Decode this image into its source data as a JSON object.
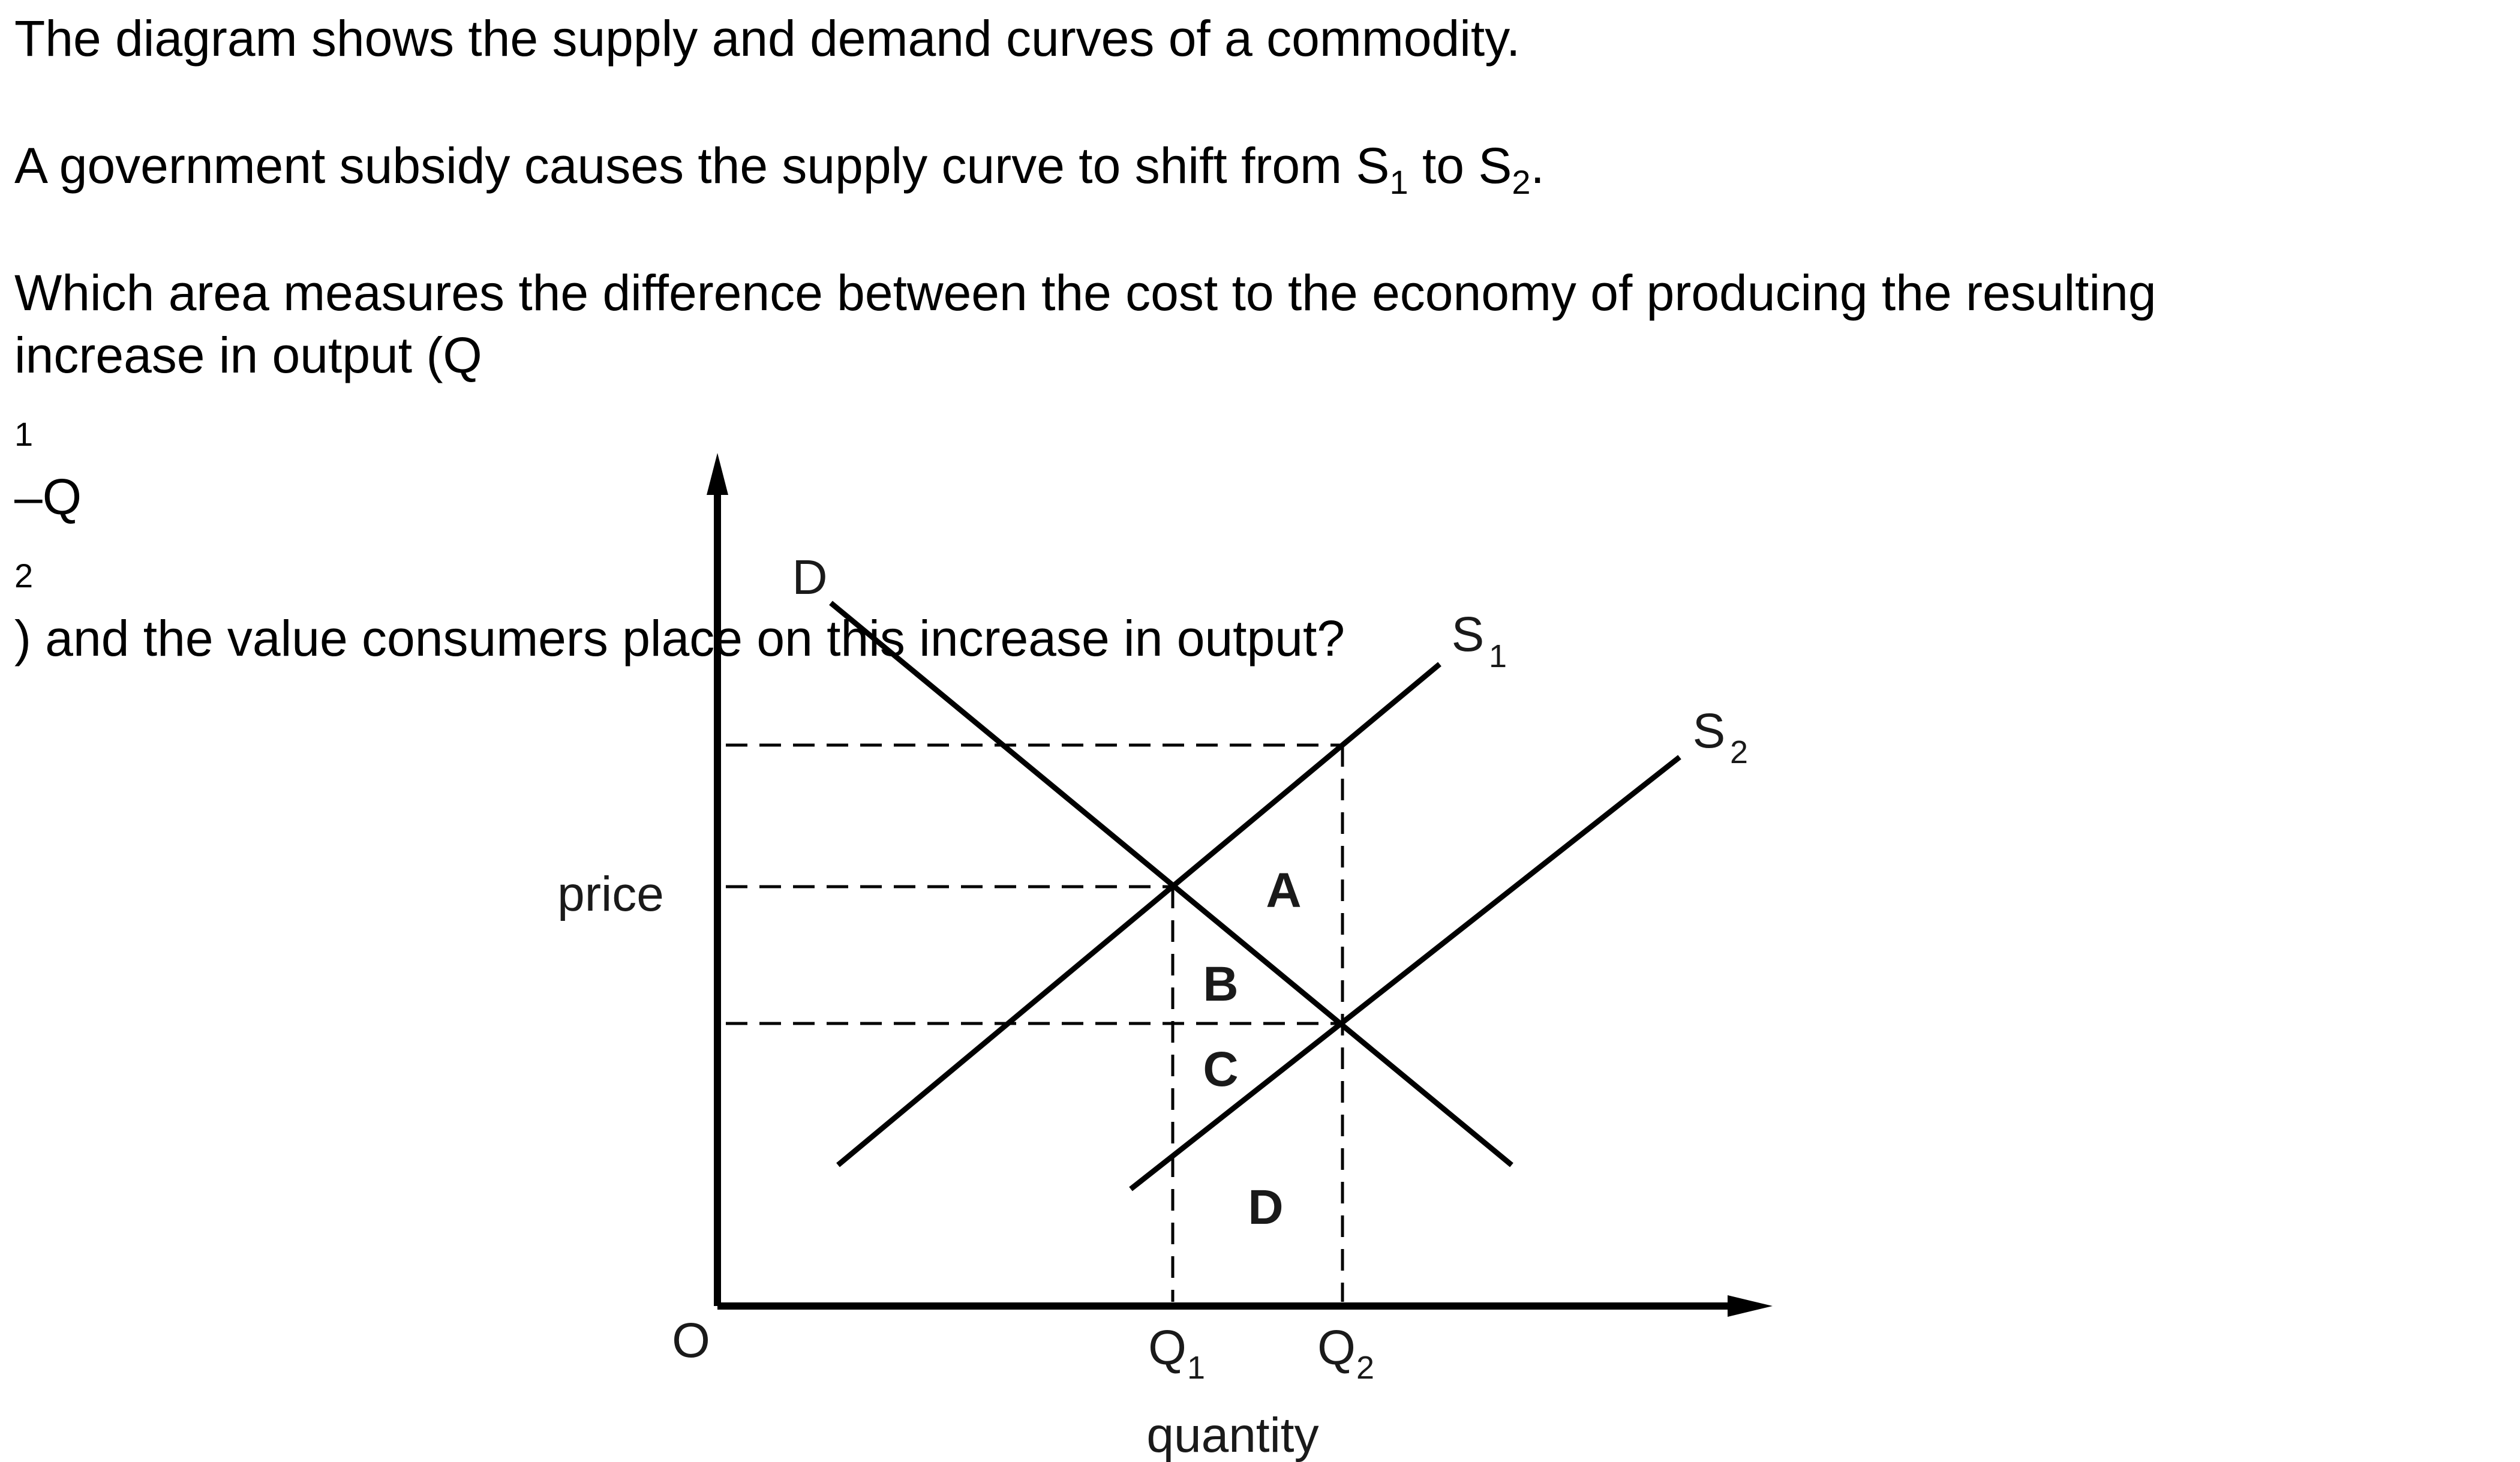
{
  "question": {
    "line1": "The diagram shows the supply and demand curves of a commodity.",
    "line2_a": "A government subsidy causes the supply curve to shift from S",
    "line2_sub1": "1",
    "line2_b": " to S",
    "line2_sub2": "2",
    "line2_c": ".",
    "line3": "Which area measures the difference between the cost to the economy of producing the resulting",
    "line4_a": "increase in output (Q",
    "line4_sub1": "1",
    "line4_b": "–Q",
    "line4_sub2": "2",
    "line4_c": ") and the value consumers place on this increase in output?"
  },
  "diagram": {
    "y_axis_label": "price",
    "x_axis_label": "quantity",
    "origin_label": "O",
    "demand_label": "D",
    "supply1_label": "S",
    "supply1_sub": "1",
    "supply2_label": "S",
    "supply2_sub": "2",
    "q1_label": "Q",
    "q1_sub": "1",
    "q2_label": "Q",
    "q2_sub": "2",
    "area_a": "A",
    "area_b": "B",
    "area_c": "C",
    "area_d": "D"
  }
}
